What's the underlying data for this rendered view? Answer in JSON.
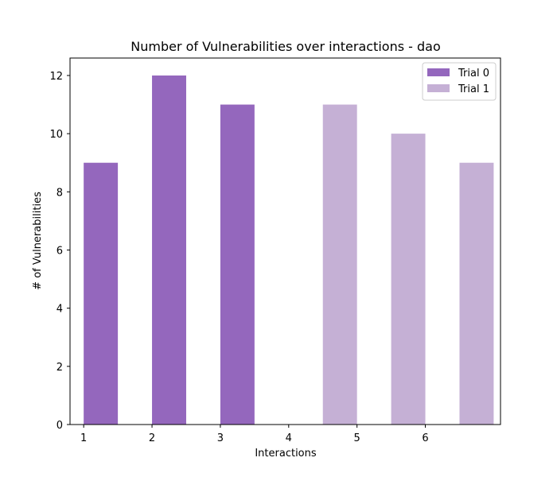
{
  "chart_data": {
    "type": "bar",
    "title": "Number of Vulnerabilities over interactions - dao",
    "xlabel": "Interactions",
    "ylabel": "# of Vulnerabilities",
    "xlim": [
      0.8,
      7.1
    ],
    "ylim": [
      0,
      12.6
    ],
    "xticks": [
      1,
      2,
      3,
      4,
      5,
      6
    ],
    "yticks": [
      0,
      2,
      4,
      6,
      8,
      10,
      12
    ],
    "bar_width": 0.5,
    "grid": false,
    "legend_position": "top-right",
    "series": [
      {
        "name": "Trial 0",
        "color": "#9467bd",
        "x": [
          1.25,
          2.25,
          3.25
        ],
        "values": [
          9,
          12,
          11
        ]
      },
      {
        "name": "Trial 1",
        "color": "#c5b0d5",
        "x": [
          4.75,
          5.75,
          6.75
        ],
        "values": [
          11,
          10,
          9
        ]
      }
    ]
  }
}
